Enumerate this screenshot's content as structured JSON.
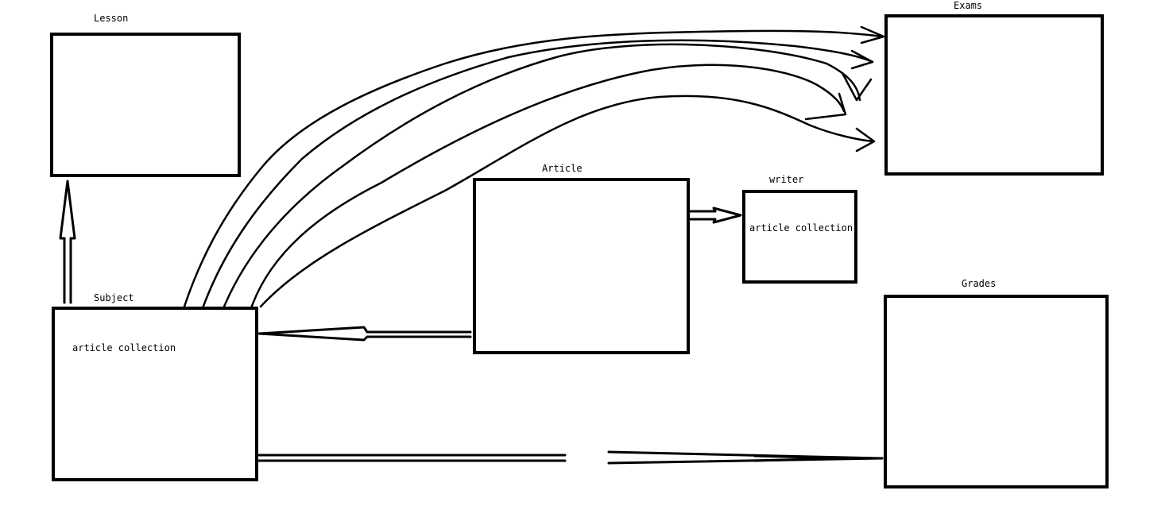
{
  "nodes": {
    "lesson": {
      "title": "Lesson"
    },
    "subject": {
      "title": "Subject",
      "content": "article collection"
    },
    "article": {
      "title": "Article"
    },
    "writer": {
      "title": "writer",
      "content": "article collection"
    },
    "exams": {
      "title": "Exams"
    },
    "grades": {
      "title": "Grades"
    }
  },
  "colors": {
    "stroke": "#000000",
    "background": "#ffffff"
  }
}
